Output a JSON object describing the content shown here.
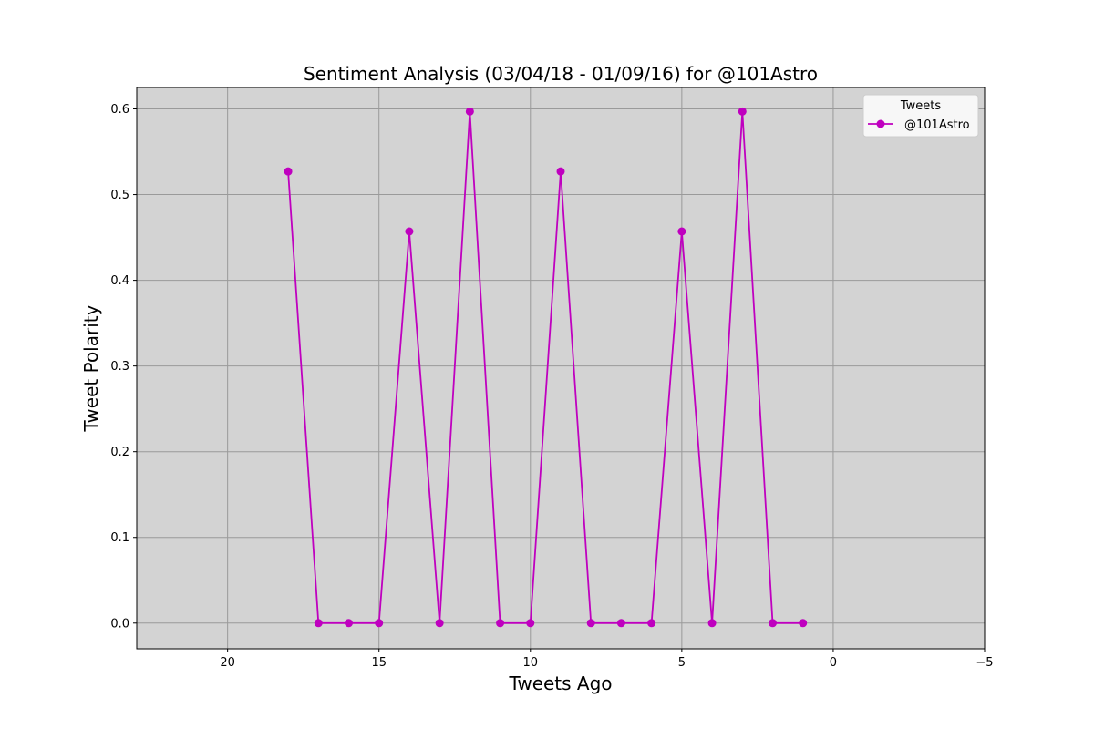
{
  "chart_data": {
    "type": "line",
    "title": "Sentiment Analysis (03/04/18 - 01/09/16) for @101Astro",
    "xlabel": "Tweets Ago",
    "ylabel": "Tweet Polarity",
    "xlim": [
      23,
      -5
    ],
    "ylim": [
      -0.03,
      0.625
    ],
    "x_inverted": true,
    "xticks": [
      20,
      15,
      10,
      5,
      0,
      -5
    ],
    "xtick_labels": [
      "20",
      "15",
      "10",
      "5",
      "0",
      "−5"
    ],
    "yticks": [
      0.0,
      0.1,
      0.2,
      0.3,
      0.4,
      0.5,
      0.6
    ],
    "ytick_labels": [
      "0.0",
      "0.1",
      "0.2",
      "0.3",
      "0.4",
      "0.5",
      "0.6"
    ],
    "grid": true,
    "legend_title": "Tweets",
    "legend_position": "top-right",
    "background_color": "#d3d3d3",
    "series": [
      {
        "name": "@101Astro",
        "color": "#bf00bf",
        "marker": "circle",
        "x": [
          18,
          17,
          16,
          15,
          14,
          13,
          12,
          11,
          10,
          9,
          8,
          7,
          6,
          5,
          4,
          3,
          2,
          1
        ],
        "y": [
          0.527,
          0,
          0,
          0,
          0.457,
          0,
          0.597,
          0,
          0,
          0.527,
          0,
          0,
          0,
          0.457,
          0,
          0.597,
          0,
          0
        ]
      }
    ]
  }
}
